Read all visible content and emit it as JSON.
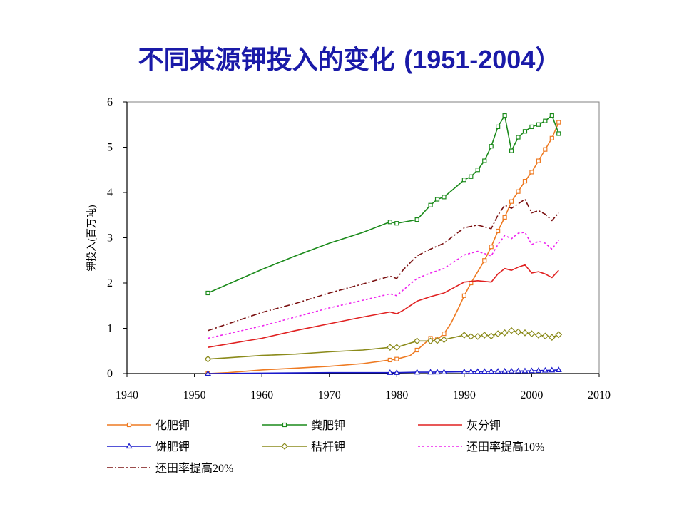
{
  "page": {
    "title_cn": "不同来源钾投入的变化",
    "title_years": "(1951-2004）"
  },
  "chart_data": {
    "type": "line",
    "ylabel": "钾投入(百万吨)",
    "xlabel": "",
    "xlim": [
      1940,
      2010
    ],
    "ylim": [
      0,
      6
    ],
    "xticks": [
      1940,
      1950,
      1960,
      1970,
      1980,
      1990,
      2000,
      2010
    ],
    "yticks": [
      0,
      1,
      2,
      3,
      4,
      5,
      6
    ],
    "grid": false,
    "legend_position": "bottom",
    "series": [
      {
        "name": "化肥钾",
        "color": "#ee7a22",
        "dash": "",
        "marker": "square-open",
        "x": [
          1952,
          1955,
          1960,
          1965,
          1970,
          1975,
          1979,
          1980,
          1982,
          1983,
          1985,
          1986,
          1987,
          1988,
          1989,
          1990,
          1991,
          1992,
          1993,
          1994,
          1995,
          1996,
          1997,
          1998,
          1999,
          2000,
          2001,
          2002,
          2003,
          2004
        ],
        "y": [
          0.0,
          0.02,
          0.08,
          0.12,
          0.16,
          0.22,
          0.3,
          0.32,
          0.4,
          0.52,
          0.78,
          0.75,
          0.88,
          1.1,
          1.4,
          1.72,
          2.0,
          2.25,
          2.5,
          2.8,
          3.15,
          3.45,
          3.8,
          4.02,
          4.25,
          4.45,
          4.7,
          4.95,
          5.2,
          5.55
        ],
        "marker_x": [
          1952,
          1979,
          1980,
          1983,
          1985,
          1986,
          1987,
          1990,
          1991,
          1993,
          1994,
          1995,
          1996,
          1997,
          1998,
          1999,
          2000,
          2001,
          2002,
          2003,
          2004
        ]
      },
      {
        "name": "粪肥钾",
        "color": "#1a8a1a",
        "dash": "",
        "marker": "square-open",
        "x": [
          1952,
          1960,
          1965,
          1970,
          1975,
          1979,
          1980,
          1983,
          1985,
          1986,
          1987,
          1989,
          1990,
          1991,
          1992,
          1993,
          1994,
          1995,
          1996,
          1997,
          1998,
          1999,
          2000,
          2001,
          2002,
          2003,
          2004
        ],
        "y": [
          1.78,
          2.3,
          2.6,
          2.88,
          3.12,
          3.35,
          3.32,
          3.4,
          3.72,
          3.85,
          3.9,
          4.15,
          4.28,
          4.35,
          4.5,
          4.7,
          5.02,
          5.45,
          5.7,
          4.92,
          5.22,
          5.35,
          5.45,
          5.5,
          5.58,
          5.7,
          5.3
        ],
        "marker_x": [
          1952,
          1979,
          1980,
          1983,
          1985,
          1986,
          1987,
          1990,
          1991,
          1992,
          1993,
          1994,
          1995,
          1996,
          1997,
          1998,
          1999,
          2000,
          2001,
          2002,
          2003,
          2004
        ]
      },
      {
        "name": "灰分钾",
        "color": "#e02020",
        "dash": "",
        "marker": "none",
        "x": [
          1952,
          1960,
          1965,
          1970,
          1975,
          1979,
          1980,
          1981,
          1983,
          1985,
          1987,
          1990,
          1992,
          1994,
          1995,
          1996,
          1997,
          1998,
          1999,
          2000,
          2001,
          2002,
          2003,
          2004
        ],
        "y": [
          0.58,
          0.78,
          0.95,
          1.1,
          1.25,
          1.36,
          1.32,
          1.4,
          1.6,
          1.7,
          1.78,
          2.02,
          2.05,
          2.02,
          2.2,
          2.32,
          2.28,
          2.35,
          2.4,
          2.22,
          2.25,
          2.2,
          2.12,
          2.28
        ],
        "marker_x": []
      },
      {
        "name": "饼肥钾",
        "color": "#1a1acc",
        "dash": "",
        "marker": "triangle-open",
        "x": [
          1952,
          1960,
          1970,
          1979,
          1980,
          1983,
          1985,
          1990,
          1995,
          2000,
          2004
        ],
        "y": [
          0.0,
          0.01,
          0.02,
          0.02,
          0.02,
          0.03,
          0.03,
          0.04,
          0.05,
          0.06,
          0.08
        ],
        "marker_x": [
          1952,
          1979,
          1980,
          1983,
          1985,
          1986,
          1987,
          1990,
          1991,
          1992,
          1993,
          1994,
          1995,
          1996,
          1997,
          1998,
          1999,
          2000,
          2001,
          2002,
          2003,
          2004
        ]
      },
      {
        "name": "秸杆钾",
        "color": "#8a8a1a",
        "dash": "",
        "marker": "diamond-open",
        "x": [
          1952,
          1955,
          1960,
          1965,
          1970,
          1975,
          1979,
          1980,
          1983,
          1985,
          1986,
          1987,
          1990,
          1991,
          1992,
          1993,
          1994,
          1995,
          1996,
          1997,
          1998,
          1999,
          2000,
          2001,
          2002,
          2003,
          2004
        ],
        "y": [
          0.32,
          0.35,
          0.4,
          0.43,
          0.48,
          0.52,
          0.58,
          0.58,
          0.72,
          0.72,
          0.73,
          0.75,
          0.85,
          0.82,
          0.82,
          0.85,
          0.83,
          0.88,
          0.9,
          0.95,
          0.92,
          0.9,
          0.88,
          0.85,
          0.83,
          0.8,
          0.86
        ],
        "marker_x": [
          1952,
          1979,
          1980,
          1983,
          1985,
          1986,
          1987,
          1990,
          1991,
          1992,
          1993,
          1994,
          1995,
          1996,
          1997,
          1998,
          1999,
          2000,
          2001,
          2002,
          2003,
          2004
        ]
      },
      {
        "name": "还田率提高10%",
        "color": "#ee22ee",
        "dash": "3,3",
        "marker": "none",
        "x": [
          1952,
          1960,
          1965,
          1970,
          1975,
          1979,
          1980,
          1981,
          1983,
          1985,
          1987,
          1990,
          1992,
          1994,
          1995,
          1996,
          1997,
          1998,
          1999,
          2000,
          2001,
          2002,
          2003,
          2004
        ],
        "y": [
          0.78,
          1.05,
          1.25,
          1.45,
          1.62,
          1.76,
          1.72,
          1.85,
          2.1,
          2.22,
          2.32,
          2.62,
          2.7,
          2.6,
          2.85,
          3.05,
          2.98,
          3.1,
          3.12,
          2.85,
          2.92,
          2.88,
          2.75,
          2.95
        ],
        "marker_x": []
      },
      {
        "name": "还田率提高20%",
        "color": "#7a1010",
        "dash": "8,3,2,3",
        "marker": "none",
        "x": [
          1952,
          1960,
          1965,
          1970,
          1975,
          1979,
          1980,
          1981,
          1983,
          1985,
          1987,
          1990,
          1992,
          1994,
          1995,
          1996,
          1997,
          1998,
          1999,
          2000,
          2001,
          2002,
          2003,
          2004
        ],
        "y": [
          0.95,
          1.35,
          1.55,
          1.78,
          1.98,
          2.15,
          2.1,
          2.3,
          2.6,
          2.75,
          2.88,
          3.22,
          3.28,
          3.2,
          3.5,
          3.72,
          3.65,
          3.75,
          3.85,
          3.55,
          3.6,
          3.52,
          3.38,
          3.55
        ],
        "marker_x": []
      }
    ]
  }
}
